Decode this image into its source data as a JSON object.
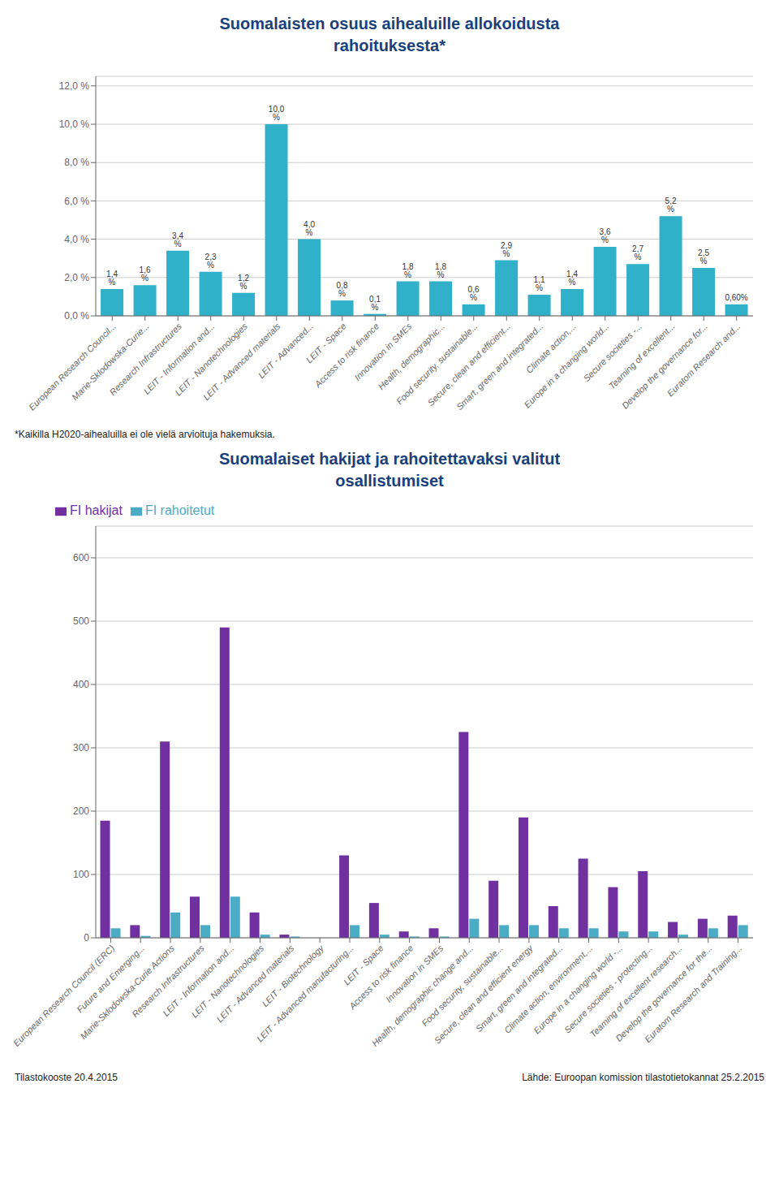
{
  "chart_data": [
    {
      "type": "bar",
      "title": "Suomalaisten osuus aihealuille allokoidusta\nrahoituksesta*",
      "categories": [
        "European Research Council...",
        "Marie-Sklodowska-Curie...",
        "Research Infrastructures",
        "LEIT - Information and...",
        "LEIT - Nanotechnologies",
        "LEIT - Advanced materials",
        "LEIT - Advanced...",
        "LEIT - Space",
        "Access to risk finance",
        "Innovation in SMEs",
        "Health, demographic...",
        "Food security, sustainable...",
        "Secure, clean and efficient...",
        "Smart, green and integrated...",
        "Climate action,...",
        "Europe in a changing world...",
        "Secure societies -...",
        "Teaming of excellent...",
        "Develop the governance for...",
        "Euratom Research and..."
      ],
      "values": [
        1.4,
        1.6,
        3.4,
        2.3,
        1.2,
        10.0,
        4.0,
        0.8,
        0.1,
        1.8,
        1.8,
        0.6,
        2.9,
        1.1,
        1.4,
        3.6,
        2.7,
        5.2,
        2.5,
        0.6
      ],
      "value_labels": [
        "1,4 %",
        "1,6 %",
        "3,4 %",
        "2,3 %",
        "1,2 %",
        "10,0 %",
        "4,0 %",
        "0,8 %",
        "0,1 %",
        "1,8 %",
        "1,8 %",
        "0,6 %",
        "2,9 %",
        "1,1 %",
        "1,4 %",
        "3,6 %",
        "2,7 %",
        "5,2 %",
        "2,5 %",
        "0,60%"
      ],
      "data_labels": true,
      "color": "#31B0C9",
      "ylim": [
        0,
        12.5
      ],
      "yticks": [
        {
          "value": 0,
          "label": "0,0 %"
        },
        {
          "value": 2,
          "label": "2,0 %"
        },
        {
          "value": 4,
          "label": "4,0 %"
        },
        {
          "value": 6,
          "label": "6,0 %"
        },
        {
          "value": 8,
          "label": "8,0 %"
        },
        {
          "value": 10,
          "label": "10,0 %"
        },
        {
          "value": 12,
          "label": "12,0 %"
        }
      ],
      "grid": true,
      "annotations": [
        "*Kaikilla H2020-aihealuilla ei ole vielä arvioituja hakemuksia."
      ]
    },
    {
      "type": "bar",
      "title": "Suomalaiset hakijat ja rahoitettavaksi valitut\nosallistumiset",
      "categories": [
        "European Research Council (ERC)",
        "Future and Emerging...",
        "Marie-Sklodowska-Curie Actions",
        "Research Infrastructures",
        "LEIT - Information and...",
        "LEIT - Nanotechnologies",
        "LEIT - Advanced materials",
        "LEIT - Biotechnology",
        "LEIT - Advanced manufacturing...",
        "LEIT - Space",
        "Access to risk finance",
        "Innovation in SMEs",
        "Health, demographic change and...",
        "Food security, sustainable...",
        "Secure, clean and efficient energy",
        "Smart, green and integrated...",
        "Climate action, environment,...",
        "Europe in a changing world -...",
        "Secure societies - protecting...",
        "Teaming of excellent research...",
        "Develop the governance for the...",
        "Euratom Research and Training..."
      ],
      "series": [
        {
          "name": "FI hakijat",
          "color": "#7030A0",
          "values": [
            185,
            20,
            310,
            65,
            490,
            40,
            5,
            0,
            130,
            55,
            10,
            15,
            325,
            90,
            190,
            50,
            125,
            80,
            105,
            25,
            30,
            35
          ]
        },
        {
          "name": "FI rahoitetut",
          "color": "#4BACC6",
          "values": [
            15,
            3,
            40,
            20,
            65,
            5,
            2,
            0,
            20,
            5,
            2,
            2,
            30,
            20,
            20,
            15,
            15,
            10,
            10,
            5,
            15,
            20
          ]
        }
      ],
      "ylim": [
        0,
        650
      ],
      "yticks": [
        0,
        100,
        200,
        300,
        400,
        500,
        600
      ],
      "grid": true,
      "legend": "upper left",
      "annotations": [
        "Tilastokooste 20.4.2015",
        "Lähde: Euroopan komission tilastotietokannat 25.2.2015"
      ]
    }
  ]
}
